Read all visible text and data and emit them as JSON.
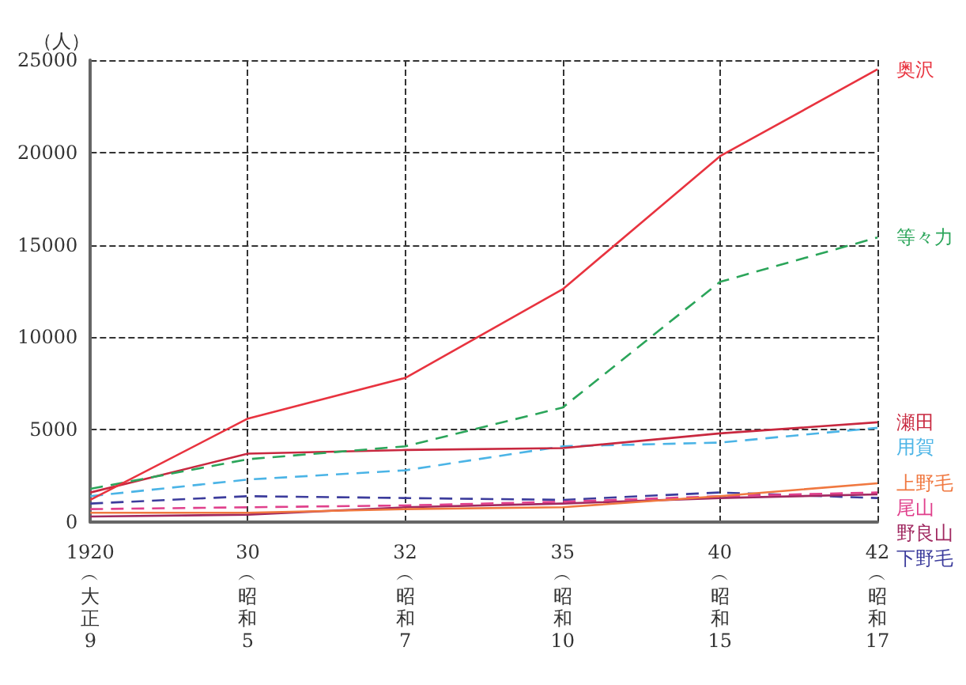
{
  "chart_data": {
    "type": "line",
    "ylabel": "（人）",
    "categories": [
      "1920︵大正9",
      "30︵昭和5",
      "32︵昭和7",
      "35︵昭和10",
      "40︵昭和15",
      "42︵昭和17"
    ],
    "ylim": [
      0,
      25000
    ],
    "yticks": [
      0,
      5000,
      10000,
      15000,
      20000,
      25000
    ],
    "grid": true,
    "legend": false,
    "marker": "none",
    "series": [
      {
        "name": "奥沢",
        "color": "#e8333f",
        "line_style": "solid",
        "values": [
          1200,
          5600,
          7800,
          12600,
          19800,
          24500
        ]
      },
      {
        "name": "等々力",
        "color": "#2ba55a",
        "line_style": "dashed",
        "values": [
          1800,
          3400,
          4100,
          6200,
          13000,
          15400
        ]
      },
      {
        "name": "瀬田",
        "color": "#c8283f",
        "line_style": "solid",
        "values": [
          1600,
          3700,
          3900,
          4000,
          4800,
          5400
        ]
      },
      {
        "name": "用賀",
        "color": "#4bb4e6",
        "line_style": "dashed",
        "values": [
          1400,
          2300,
          2800,
          4100,
          4300,
          5100
        ]
      },
      {
        "name": "上野毛",
        "color": "#f07840",
        "line_style": "solid",
        "values": [
          500,
          500,
          700,
          800,
          1400,
          2100
        ]
      },
      {
        "name": "尾山",
        "color": "#e0408c",
        "line_style": "dashed",
        "values": [
          700,
          800,
          900,
          1100,
          1400,
          1600
        ]
      },
      {
        "name": "野良山",
        "color": "#a02860",
        "line_style": "solid",
        "values": [
          300,
          400,
          800,
          1000,
          1300,
          1500
        ]
      },
      {
        "name": "下野毛",
        "color": "#3c3c9c",
        "line_style": "dashed",
        "values": [
          1000,
          1400,
          1300,
          1200,
          1600,
          1300
        ]
      }
    ]
  }
}
